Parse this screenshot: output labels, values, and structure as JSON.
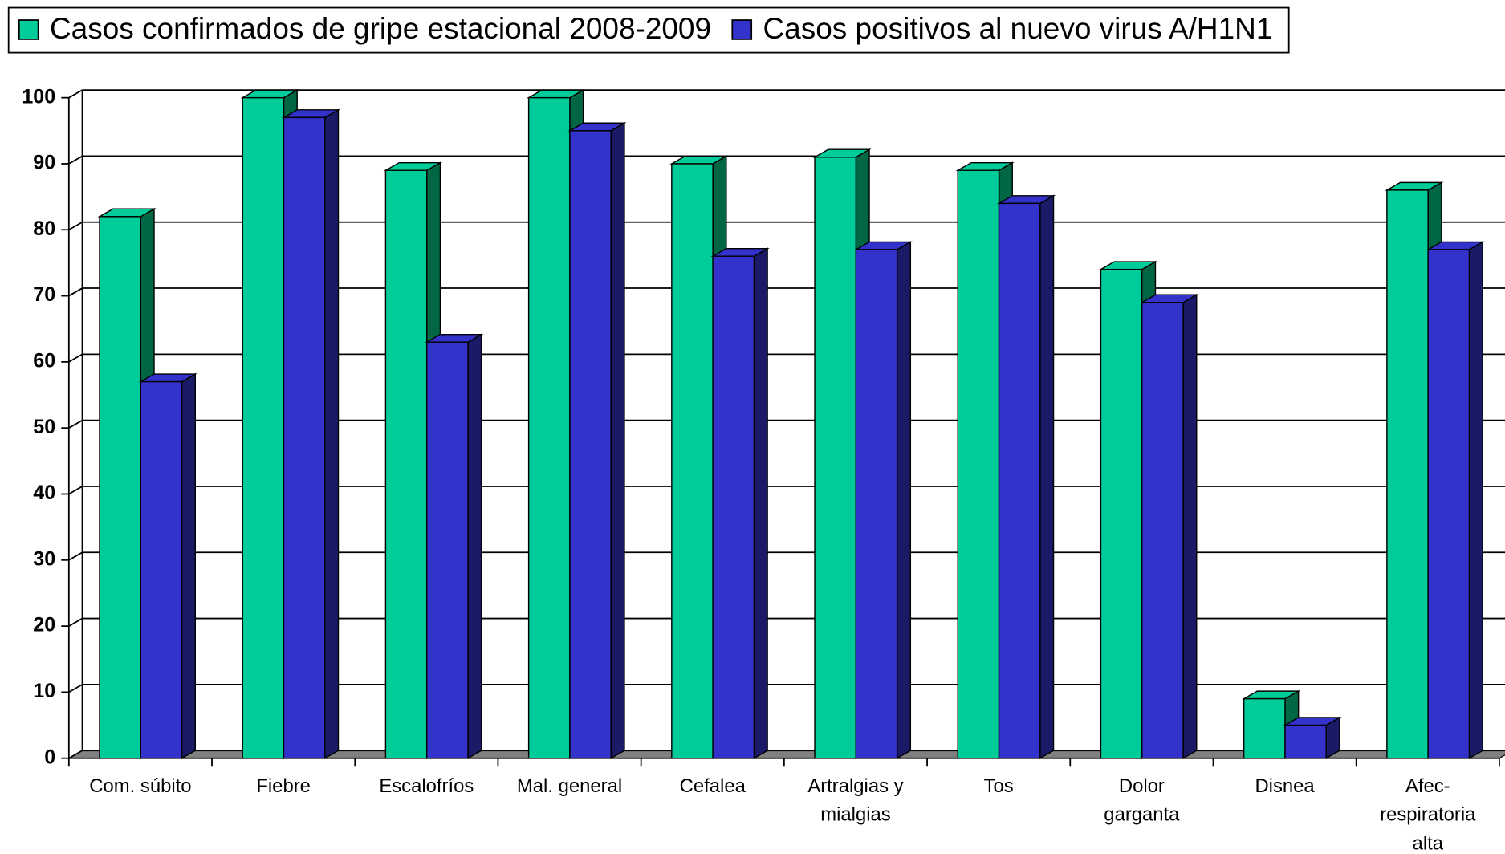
{
  "chart_data": {
    "type": "bar3d",
    "categories": [
      [
        "Com. súbito"
      ],
      [
        "Fiebre"
      ],
      [
        "Escalofríos"
      ],
      [
        "Mal. general"
      ],
      [
        "Cefalea"
      ],
      [
        "Artralgias y",
        "mialgias"
      ],
      [
        "Tos"
      ],
      [
        "Dolor",
        "garganta"
      ],
      [
        "Disnea"
      ],
      [
        "Afec-",
        "respiratoria",
        "alta"
      ]
    ],
    "series": [
      {
        "name": "Casos confirmados de gripe estacional 2008-2009",
        "color": "#00CC99",
        "side_color": "#006644",
        "values": [
          82,
          100,
          89,
          100,
          90,
          91,
          89,
          74,
          9,
          86
        ]
      },
      {
        "name": "Casos positivos al nuevo virus A/H1N1",
        "color": "#3333CC",
        "side_color": "#1A1A66",
        "values": [
          57,
          97,
          63,
          95,
          76,
          77,
          84,
          69,
          5,
          77
        ]
      }
    ],
    "ylim": [
      0,
      100
    ],
    "yticks": [
      0,
      10,
      20,
      30,
      40,
      50,
      60,
      70,
      80,
      90,
      100
    ],
    "grid": true,
    "legend": "top"
  }
}
